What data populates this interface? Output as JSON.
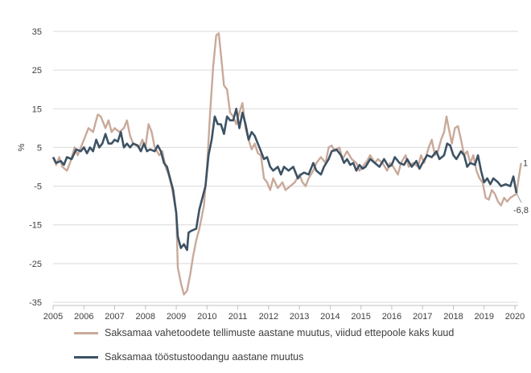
{
  "chart_data": {
    "type": "line",
    "ylabel": "%",
    "ylim": [
      -35,
      40
    ],
    "xlim": [
      2005,
      2020.25
    ],
    "y_ticks": [
      "35",
      "25",
      "15",
      "5",
      "-5",
      "-15",
      "-25",
      "-35"
    ],
    "x_ticks": [
      "2005",
      "2006",
      "2007",
      "2008",
      "2009",
      "2010",
      "2011",
      "2012",
      "2013",
      "2014",
      "2015",
      "2016",
      "2017",
      "2018",
      "2019",
      "2020"
    ],
    "grid": "horizontal",
    "legend_position": "bottom",
    "series": [
      {
        "name": "Saksamaa vahetoodete tellimuste aastane muutus, viidud ettepoole kaks kuud",
        "color": "#c9a99a",
        "points": [
          [
            2005.0,
            2.5
          ],
          [
            2005.1,
            0.5
          ],
          [
            2005.2,
            2.5
          ],
          [
            2005.3,
            0
          ],
          [
            2005.45,
            -1
          ],
          [
            2005.55,
            1
          ],
          [
            2005.7,
            5
          ],
          [
            2005.8,
            3
          ],
          [
            2006.0,
            7
          ],
          [
            2006.15,
            10
          ],
          [
            2006.3,
            9
          ],
          [
            2006.45,
            13.5
          ],
          [
            2006.55,
            13
          ],
          [
            2006.7,
            10
          ],
          [
            2006.8,
            12
          ],
          [
            2006.9,
            9
          ],
          [
            2007.0,
            10
          ],
          [
            2007.15,
            9
          ],
          [
            2007.3,
            10
          ],
          [
            2007.4,
            12
          ],
          [
            2007.5,
            8
          ],
          [
            2007.6,
            6
          ],
          [
            2007.8,
            5
          ],
          [
            2007.9,
            7
          ],
          [
            2008.0,
            5
          ],
          [
            2008.1,
            11
          ],
          [
            2008.2,
            9
          ],
          [
            2008.3,
            5
          ],
          [
            2008.45,
            3
          ],
          [
            2008.55,
            4
          ],
          [
            2008.65,
            0
          ],
          [
            2008.75,
            -2
          ],
          [
            2008.85,
            -5
          ],
          [
            2009.0,
            -12
          ],
          [
            2009.05,
            -26
          ],
          [
            2009.15,
            -30
          ],
          [
            2009.25,
            -33
          ],
          [
            2009.35,
            -32
          ],
          [
            2009.45,
            -28
          ],
          [
            2009.55,
            -23
          ],
          [
            2009.65,
            -19
          ],
          [
            2009.75,
            -16
          ],
          [
            2009.9,
            -10
          ],
          [
            2010.0,
            0
          ],
          [
            2010.1,
            14
          ],
          [
            2010.2,
            26
          ],
          [
            2010.3,
            34
          ],
          [
            2010.38,
            34.5
          ],
          [
            2010.45,
            29
          ],
          [
            2010.55,
            21
          ],
          [
            2010.65,
            20
          ],
          [
            2010.75,
            14
          ],
          [
            2010.85,
            13
          ],
          [
            2010.95,
            11
          ],
          [
            2011.05,
            14
          ],
          [
            2011.15,
            16.5
          ],
          [
            2011.25,
            10
          ],
          [
            2011.35,
            7
          ],
          [
            2011.45,
            4.5
          ],
          [
            2011.55,
            6
          ],
          [
            2011.65,
            3.5
          ],
          [
            2011.75,
            3
          ],
          [
            2011.85,
            -3
          ],
          [
            2011.95,
            -4
          ],
          [
            2012.05,
            -6
          ],
          [
            2012.15,
            -3
          ],
          [
            2012.3,
            -5.5
          ],
          [
            2012.45,
            -4
          ],
          [
            2012.55,
            -6
          ],
          [
            2012.7,
            -5
          ],
          [
            2012.85,
            -4
          ],
          [
            2013.0,
            -2
          ],
          [
            2013.1,
            -4
          ],
          [
            2013.2,
            -5
          ],
          [
            2013.3,
            -3
          ],
          [
            2013.45,
            -1
          ],
          [
            2013.55,
            1
          ],
          [
            2013.7,
            2.5
          ],
          [
            2013.85,
            1
          ],
          [
            2013.95,
            5
          ],
          [
            2014.05,
            5.5
          ],
          [
            2014.15,
            4
          ],
          [
            2014.3,
            5
          ],
          [
            2014.4,
            2
          ],
          [
            2014.55,
            4
          ],
          [
            2014.7,
            2
          ],
          [
            2014.85,
            1
          ],
          [
            2014.95,
            -1
          ],
          [
            2015.05,
            0
          ],
          [
            2015.2,
            1.5
          ],
          [
            2015.3,
            3
          ],
          [
            2015.45,
            1
          ],
          [
            2015.55,
            2
          ],
          [
            2015.7,
            1
          ],
          [
            2015.85,
            -1
          ],
          [
            2015.95,
            1
          ],
          [
            2016.05,
            0
          ],
          [
            2016.2,
            -2
          ],
          [
            2016.3,
            1
          ],
          [
            2016.45,
            3
          ],
          [
            2016.55,
            0
          ],
          [
            2016.7,
            1
          ],
          [
            2016.85,
            0
          ],
          [
            2016.95,
            3
          ],
          [
            2017.05,
            1
          ],
          [
            2017.2,
            5
          ],
          [
            2017.3,
            7
          ],
          [
            2017.4,
            3
          ],
          [
            2017.5,
            4
          ],
          [
            2017.6,
            7
          ],
          [
            2017.7,
            9
          ],
          [
            2017.78,
            13
          ],
          [
            2017.85,
            10
          ],
          [
            2017.95,
            6
          ],
          [
            2018.05,
            10
          ],
          [
            2018.15,
            10.5
          ],
          [
            2018.25,
            7
          ],
          [
            2018.35,
            3
          ],
          [
            2018.45,
            4
          ],
          [
            2018.55,
            1
          ],
          [
            2018.65,
            3
          ],
          [
            2018.75,
            -1
          ],
          [
            2018.85,
            -3
          ],
          [
            2018.95,
            -4
          ],
          [
            2019.05,
            -8
          ],
          [
            2019.15,
            -8.5
          ],
          [
            2019.25,
            -6
          ],
          [
            2019.35,
            -7
          ],
          [
            2019.45,
            -9
          ],
          [
            2019.55,
            -10
          ],
          [
            2019.65,
            -8
          ],
          [
            2019.75,
            -9
          ],
          [
            2019.85,
            -8
          ],
          [
            2019.95,
            -7.5
          ],
          [
            2020.05,
            -7
          ],
          [
            2020.12,
            -3
          ],
          [
            2020.2,
            1
          ]
        ]
      },
      {
        "name": "Saksamaa tööstustoodangu aastane muutus",
        "color": "#3c5264",
        "points": [
          [
            2005.0,
            2.5
          ],
          [
            2005.1,
            1
          ],
          [
            2005.25,
            1.5
          ],
          [
            2005.35,
            0.5
          ],
          [
            2005.45,
            2.5
          ],
          [
            2005.6,
            2
          ],
          [
            2005.75,
            4.5
          ],
          [
            2005.9,
            4
          ],
          [
            2006.0,
            5
          ],
          [
            2006.1,
            3.5
          ],
          [
            2006.2,
            5
          ],
          [
            2006.3,
            4
          ],
          [
            2006.4,
            7
          ],
          [
            2006.5,
            5
          ],
          [
            2006.6,
            6
          ],
          [
            2006.7,
            8.5
          ],
          [
            2006.8,
            6
          ],
          [
            2006.9,
            6
          ],
          [
            2007.0,
            7
          ],
          [
            2007.1,
            6.5
          ],
          [
            2007.2,
            9
          ],
          [
            2007.3,
            5
          ],
          [
            2007.4,
            6
          ],
          [
            2007.5,
            5
          ],
          [
            2007.6,
            6
          ],
          [
            2007.75,
            5.5
          ],
          [
            2007.85,
            4
          ],
          [
            2007.95,
            6
          ],
          [
            2008.05,
            4
          ],
          [
            2008.15,
            4.5
          ],
          [
            2008.3,
            4
          ],
          [
            2008.4,
            5.5
          ],
          [
            2008.5,
            4
          ],
          [
            2008.6,
            1
          ],
          [
            2008.7,
            0
          ],
          [
            2008.8,
            -3
          ],
          [
            2008.9,
            -6
          ],
          [
            2009.0,
            -12
          ],
          [
            2009.05,
            -18
          ],
          [
            2009.15,
            -21
          ],
          [
            2009.25,
            -20
          ],
          [
            2009.35,
            -21.5
          ],
          [
            2009.4,
            -17
          ],
          [
            2009.5,
            -16.5
          ],
          [
            2009.65,
            -16
          ],
          [
            2009.75,
            -11
          ],
          [
            2009.85,
            -8
          ],
          [
            2009.95,
            -5
          ],
          [
            2010.05,
            3
          ],
          [
            2010.15,
            7
          ],
          [
            2010.25,
            13
          ],
          [
            2010.35,
            11
          ],
          [
            2010.45,
            11
          ],
          [
            2010.55,
            8.5
          ],
          [
            2010.65,
            13
          ],
          [
            2010.75,
            12
          ],
          [
            2010.85,
            12
          ],
          [
            2010.95,
            15
          ],
          [
            2011.05,
            10
          ],
          [
            2011.15,
            14
          ],
          [
            2011.25,
            11
          ],
          [
            2011.35,
            7
          ],
          [
            2011.45,
            9
          ],
          [
            2011.55,
            8
          ],
          [
            2011.7,
            5
          ],
          [
            2011.85,
            2
          ],
          [
            2011.95,
            2.5
          ],
          [
            2012.05,
            0
          ],
          [
            2012.15,
            -1
          ],
          [
            2012.3,
            0
          ],
          [
            2012.4,
            -2
          ],
          [
            2012.5,
            0
          ],
          [
            2012.65,
            -1
          ],
          [
            2012.8,
            0
          ],
          [
            2012.95,
            -3
          ],
          [
            2013.05,
            -2
          ],
          [
            2013.15,
            -1.5
          ],
          [
            2013.3,
            -2
          ],
          [
            2013.45,
            1
          ],
          [
            2013.55,
            -1
          ],
          [
            2013.7,
            -2
          ],
          [
            2013.8,
            0
          ],
          [
            2013.95,
            2
          ],
          [
            2014.05,
            4
          ],
          [
            2014.2,
            4.5
          ],
          [
            2014.35,
            3
          ],
          [
            2014.45,
            1
          ],
          [
            2014.55,
            2
          ],
          [
            2014.65,
            0.5
          ],
          [
            2014.75,
            1
          ],
          [
            2014.85,
            -1
          ],
          [
            2014.95,
            0.5
          ],
          [
            2015.05,
            -0.5
          ],
          [
            2015.15,
            0
          ],
          [
            2015.3,
            2
          ],
          [
            2015.45,
            1
          ],
          [
            2015.6,
            0
          ],
          [
            2015.75,
            2
          ],
          [
            2015.9,
            0
          ],
          [
            2016.0,
            0.5
          ],
          [
            2016.1,
            2.5
          ],
          [
            2016.25,
            1
          ],
          [
            2016.4,
            0.5
          ],
          [
            2016.5,
            2
          ],
          [
            2016.65,
            0
          ],
          [
            2016.8,
            1.5
          ],
          [
            2016.9,
            -0.5
          ],
          [
            2017.0,
            1
          ],
          [
            2017.15,
            3
          ],
          [
            2017.3,
            2.5
          ],
          [
            2017.45,
            4
          ],
          [
            2017.55,
            2
          ],
          [
            2017.7,
            3
          ],
          [
            2017.8,
            6
          ],
          [
            2017.9,
            5.5
          ],
          [
            2018.0,
            3
          ],
          [
            2018.1,
            2
          ],
          [
            2018.25,
            4
          ],
          [
            2018.35,
            3
          ],
          [
            2018.45,
            0
          ],
          [
            2018.55,
            1
          ],
          [
            2018.7,
            0.5
          ],
          [
            2018.8,
            3
          ],
          [
            2018.9,
            -1
          ],
          [
            2019.0,
            -4
          ],
          [
            2019.1,
            -3
          ],
          [
            2019.2,
            -4.5
          ],
          [
            2019.3,
            -3
          ],
          [
            2019.45,
            -4
          ],
          [
            2019.55,
            -5
          ],
          [
            2019.7,
            -4.5
          ],
          [
            2019.85,
            -5
          ],
          [
            2019.95,
            -2.5
          ],
          [
            2020.05,
            -6.8
          ]
        ]
      }
    ],
    "annotations": [
      {
        "text": "1",
        "x": 2020.2,
        "y": 1
      },
      {
        "text": "-6,8",
        "x": 2020.05,
        "y": -6.8
      }
    ]
  }
}
